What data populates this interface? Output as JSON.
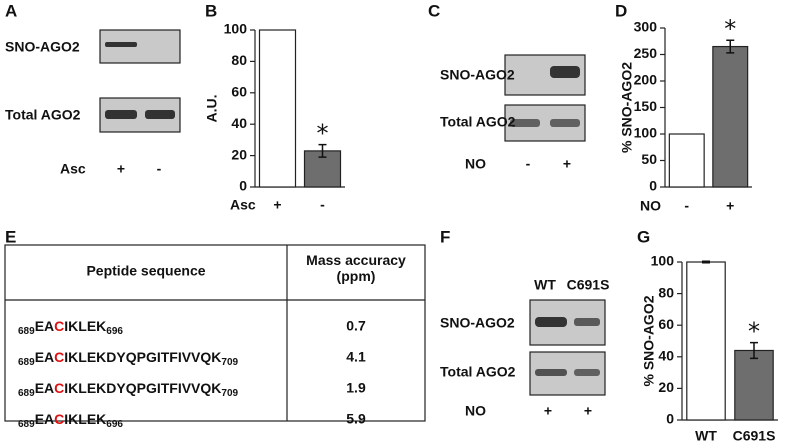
{
  "panel_labels": [
    "A",
    "B",
    "C",
    "D",
    "E",
    "F",
    "G"
  ],
  "blots": [
    {
      "rows": [
        "SNO-AGO2",
        "Total AGO2"
      ],
      "treatment": "Asc",
      "lanes": [
        "+",
        "-"
      ]
    },
    {
      "rows": [
        "SNO-AGO2",
        "Total AGO2"
      ],
      "treatment": "NO",
      "lanes": [
        "-",
        "+"
      ]
    },
    {
      "lane_headers": [
        "WT",
        "C691S"
      ],
      "rows": [
        "SNO-AGO2",
        "Total AGO2"
      ],
      "treatment": "NO",
      "lanes": [
        "+",
        "+"
      ]
    }
  ],
  "table": {
    "headers": [
      "Peptide sequence",
      "Mass accuracy (ppm)"
    ],
    "rows": [
      {
        "start": "689",
        "pre": "EA",
        "site": "C",
        "post": "IKLEK",
        "end": "696",
        "accuracy": 0.7
      },
      {
        "start": "689",
        "pre": "EA",
        "site": "C",
        "post": "IKLEKDYQPGITFIVVQK",
        "end": "709",
        "accuracy": 4.1
      },
      {
        "start": "689",
        "pre": "EA",
        "site": "C",
        "post": "IKLEKDYQPGITFIVVQK",
        "end": "709",
        "accuracy": 1.9
      },
      {
        "start": "689",
        "pre": "EA",
        "site": "C",
        "post": "IKLEK",
        "end": "696",
        "accuracy": 5.9
      }
    ]
  },
  "chart_data": [
    {
      "type": "bar",
      "ylabel": "A.U.",
      "xlabel": "Asc",
      "categories": [
        "+",
        "-"
      ],
      "values": [
        100,
        23
      ],
      "errors": [
        null,
        4
      ],
      "colors": [
        "#ffffff",
        "#6e6e6e"
      ],
      "ylim": [
        0,
        100
      ],
      "yticks": [
        0,
        20,
        40,
        60,
        80,
        100
      ],
      "annotation": "*"
    },
    {
      "type": "bar",
      "ylabel": "% SNO-AGO2",
      "xlabel": "NO",
      "categories": [
        "-",
        "+"
      ],
      "values": [
        100,
        265
      ],
      "errors": [
        null,
        12
      ],
      "colors": [
        "#ffffff",
        "#6e6e6e"
      ],
      "ylim": [
        0,
        300
      ],
      "yticks": [
        0,
        50,
        100,
        150,
        200,
        250,
        300
      ],
      "annotation": "*"
    },
    {
      "type": "bar",
      "ylabel": "% SNO-AGO2",
      "categories": [
        "WT",
        "C691S"
      ],
      "values": [
        100,
        44
      ],
      "errors": [
        0.5,
        5
      ],
      "colors": [
        "#ffffff",
        "#6e6e6e"
      ],
      "ylim": [
        0,
        100
      ],
      "yticks": [
        0,
        20,
        40,
        60,
        80,
        100
      ],
      "annotation": "*"
    }
  ]
}
